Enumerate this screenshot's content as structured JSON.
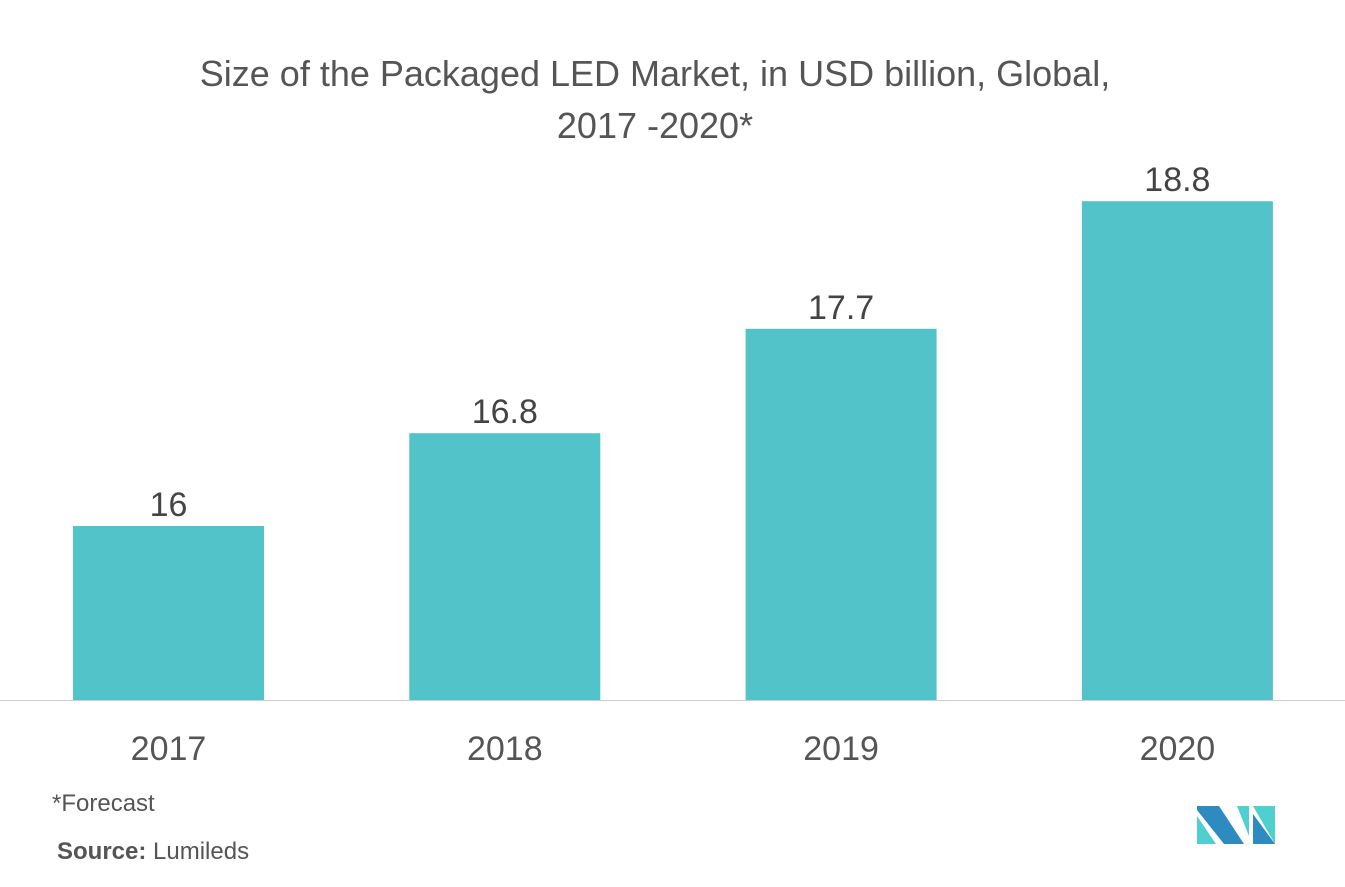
{
  "chart_data": {
    "type": "bar",
    "title_line1": "Size of the Packaged LED Market, in USD billion, Global,",
    "title_line2": "2017 -2020*",
    "categories": [
      "2017",
      "2018",
      "2019",
      "2020"
    ],
    "values": [
      16,
      16.8,
      17.7,
      18.8
    ],
    "value_labels": [
      "16",
      "16.8",
      "17.7",
      "18.8"
    ],
    "ylim": [
      14.5,
      19.0
    ],
    "grid": false,
    "bar_color": "#52c3c9"
  },
  "footnote": "*Forecast",
  "source_label": "Source:",
  "source_value": "Lumileds",
  "logo": {
    "colors": [
      "#2e8bbf",
      "#4fcfcf"
    ]
  }
}
